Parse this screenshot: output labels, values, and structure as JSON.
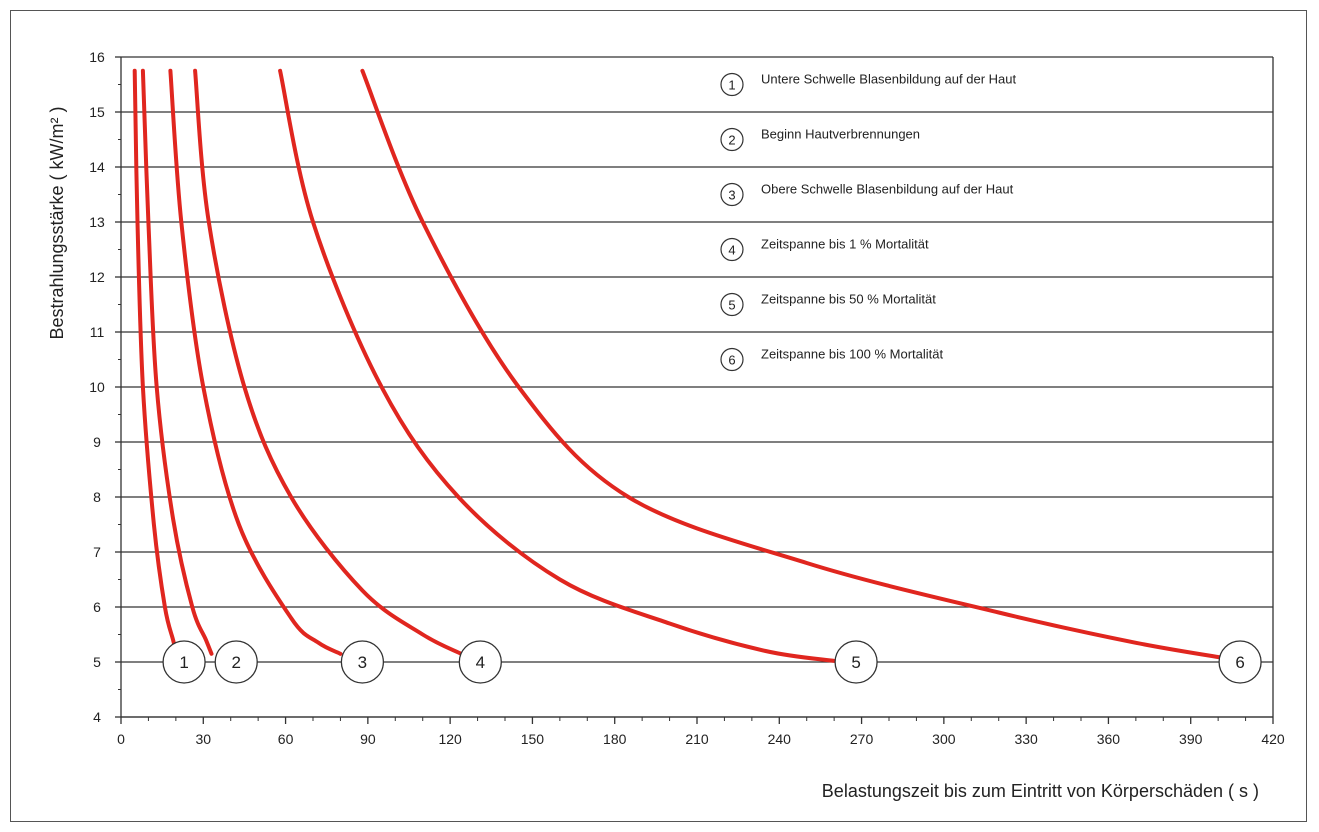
{
  "chart_data": {
    "type": "line",
    "ylabel": "Bestrahlungsstärke ( kW/m² )",
    "xlabel": "Belastungszeit bis zum Eintritt von Körperschäden ( s )",
    "xlim": [
      0,
      420
    ],
    "ylim": [
      4,
      16
    ],
    "x_ticks": [
      "0",
      "30",
      "60",
      "90",
      "120",
      "150",
      "180",
      "210",
      "240",
      "270",
      "300",
      "330",
      "360",
      "390",
      "420"
    ],
    "y_ticks": [
      "4",
      "5",
      "6",
      "7",
      "8",
      "9",
      "10",
      "11",
      "12",
      "13",
      "14",
      "15",
      "16"
    ],
    "grid": "horizontal",
    "line_color": "#e0261f",
    "legend_position": "top-right",
    "series": [
      {
        "id": "1",
        "name": "Untere Schwelle Blasenbildung auf der Haut",
        "marker_x": 23,
        "points": [
          [
            5,
            15.75
          ],
          [
            6,
            13
          ],
          [
            8,
            10
          ],
          [
            12,
            7.5
          ],
          [
            16,
            6
          ],
          [
            19,
            5.4
          ],
          [
            20,
            5.2
          ]
        ]
      },
      {
        "id": "2",
        "name": "Beginn Hautverbrennungen",
        "marker_x": 42,
        "points": [
          [
            8,
            15.75
          ],
          [
            10,
            13
          ],
          [
            13,
            10
          ],
          [
            19,
            7.6
          ],
          [
            26,
            6
          ],
          [
            31,
            5.4
          ],
          [
            33,
            5.15
          ]
        ]
      },
      {
        "id": "3",
        "name": "Obere Schwelle Blasenbildung auf der Haut",
        "marker_x": 88,
        "points": [
          [
            18,
            15.75
          ],
          [
            22,
            13
          ],
          [
            30,
            10
          ],
          [
            43,
            7.5
          ],
          [
            62,
            5.8
          ],
          [
            72,
            5.35
          ],
          [
            80,
            5.15
          ]
        ]
      },
      {
        "id": "4",
        "name": "Zeitspanne bis 1 % Mortalität",
        "marker_x": 131,
        "points": [
          [
            27,
            15.75
          ],
          [
            32,
            13
          ],
          [
            45,
            10
          ],
          [
            62,
            8
          ],
          [
            88,
            6.3
          ],
          [
            110,
            5.5
          ],
          [
            124,
            5.15
          ]
        ]
      },
      {
        "id": "5",
        "name": "Zeitspanne bis 50 % Mortalität",
        "marker_x": 268,
        "points": [
          [
            58,
            15.75
          ],
          [
            70,
            13
          ],
          [
            95,
            10
          ],
          [
            123,
            8
          ],
          [
            160,
            6.5
          ],
          [
            200,
            5.7
          ],
          [
            235,
            5.2
          ],
          [
            260,
            5.02
          ]
        ]
      },
      {
        "id": "6",
        "name": "Zeitspanne bis 100 % Mortalität",
        "marker_x": 408,
        "points": [
          [
            88,
            15.75
          ],
          [
            110,
            13
          ],
          [
            145,
            10
          ],
          [
            185,
            8
          ],
          [
            250,
            6.8
          ],
          [
            320,
            5.9
          ],
          [
            370,
            5.35
          ],
          [
            405,
            5.05
          ]
        ]
      }
    ]
  }
}
